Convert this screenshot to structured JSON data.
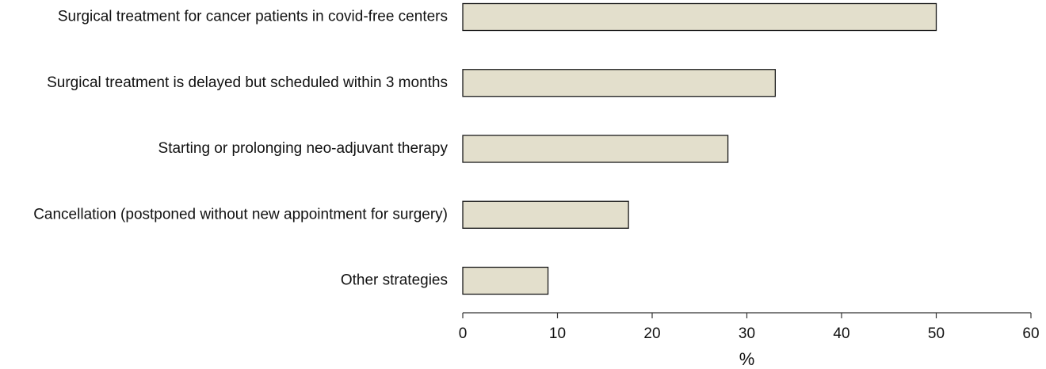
{
  "chart_data": {
    "type": "bar",
    "orientation": "horizontal",
    "categories": [
      "Surgical treatment for cancer patients in covid-free centers",
      "Surgical treatment is delayed but scheduled within 3 months",
      "Starting or prolonging neo-adjuvant therapy",
      "Cancellation (postponed without new appointment for surgery)",
      "Other strategies"
    ],
    "values": [
      50,
      33,
      28,
      17.5,
      9
    ],
    "color": "#e3dfcc",
    "edgecolor": "#1a1a1a",
    "xlabel": "%",
    "xlim": [
      0,
      60
    ],
    "xticks": [
      0,
      10,
      20,
      30,
      40,
      50,
      60
    ],
    "grid": false
  }
}
